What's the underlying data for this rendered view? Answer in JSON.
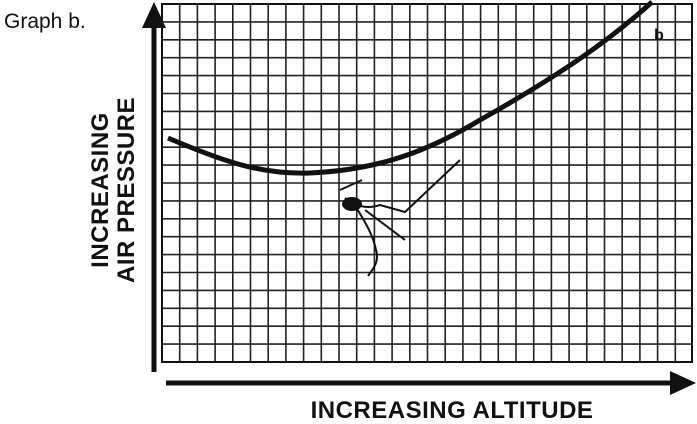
{
  "graph_label": "Graph b.",
  "y_axis_label": [
    "INCREASING",
    "AIR PRESSURE"
  ],
  "x_axis_label": "INCREASING ALTITUDE",
  "curve_label": "b"
}
